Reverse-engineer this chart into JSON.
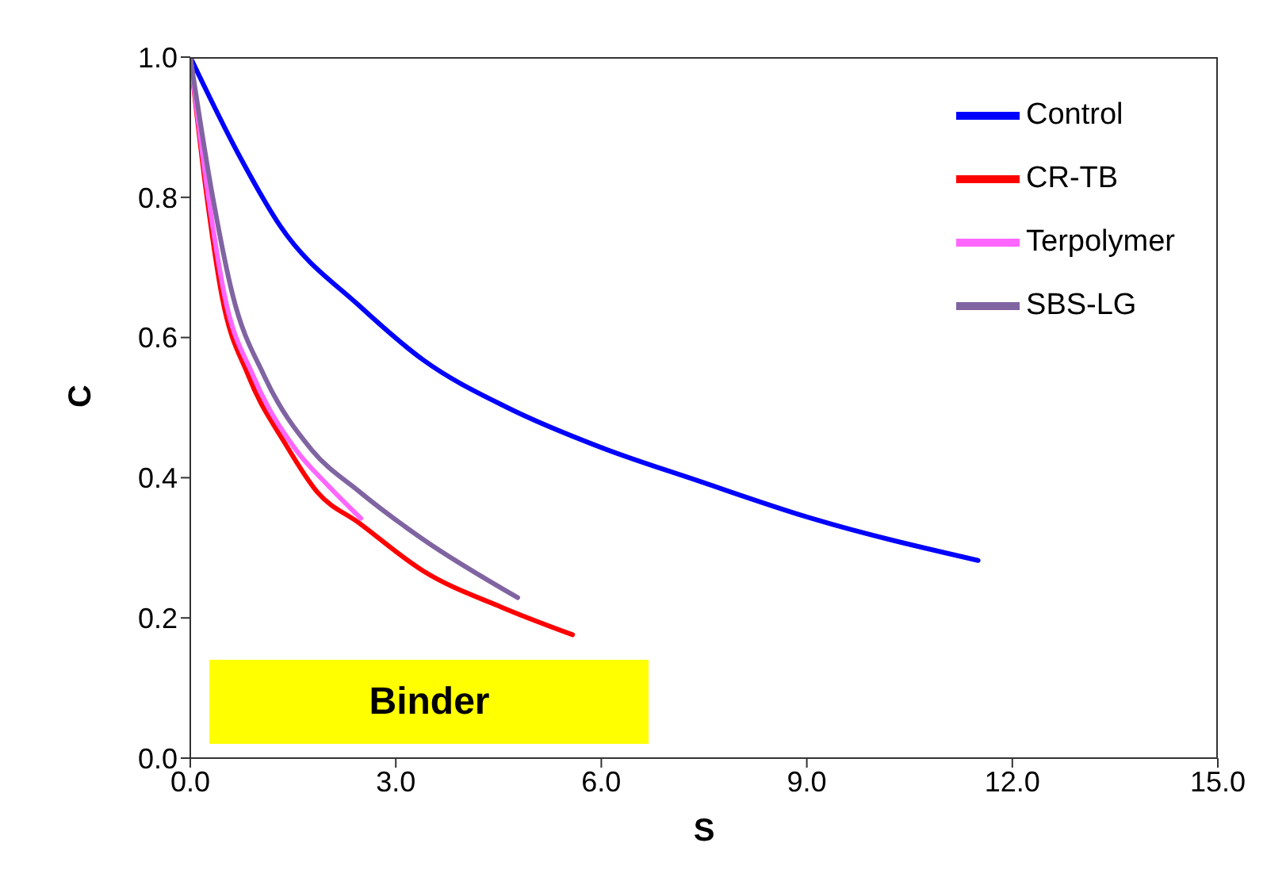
{
  "chart_data": {
    "type": "line",
    "xlabel": "S",
    "ylabel": "C",
    "annotations": [
      "Binder"
    ],
    "xlim": [
      0,
      15
    ],
    "xticks": [
      {
        "value": 0,
        "label": "0.0"
      },
      {
        "value": 3,
        "label": "3.0"
      },
      {
        "value": 6,
        "label": "6.0"
      },
      {
        "value": 9,
        "label": "9.0"
      },
      {
        "value": 12,
        "label": "12.0"
      },
      {
        "value": 15,
        "label": "15.0"
      }
    ],
    "ylim": [
      0,
      1
    ],
    "yticks": [
      {
        "value": 0,
        "label": "0.0"
      },
      {
        "value": 0.2,
        "label": "0.2"
      },
      {
        "value": 0.4,
        "label": "0.4"
      },
      {
        "value": 0.6,
        "label": "0.6"
      },
      {
        "value": 0.8,
        "label": "0.8"
      },
      {
        "value": 1,
        "label": "1.0"
      }
    ],
    "grid": false,
    "legend": "top right",
    "marker": "none",
    "line_style": "solid",
    "series": [
      {
        "name": "Control",
        "color": "#0000ff",
        "x": [
          0,
          0.69,
          1.32,
          2.47,
          3.4,
          4.63,
          6.0,
          7.4,
          9.07,
          11.5
        ],
        "values": [
          1.0,
          0.864,
          0.758,
          0.645,
          0.568,
          0.5,
          0.443,
          0.396,
          0.342,
          0.282
        ]
      },
      {
        "name": "CR-TB",
        "color": "#ff0000",
        "x": [
          0,
          0.23,
          0.46,
          0.85,
          1.39,
          1.85,
          2.47,
          3.4,
          4.55,
          5.58
        ],
        "values": [
          1.0,
          0.81,
          0.66,
          0.545,
          0.448,
          0.38,
          0.335,
          0.267,
          0.215,
          0.176
        ]
      },
      {
        "name": "Terpolymer",
        "color": "#ff66ff",
        "x": [
          0,
          0.25,
          0.5,
          0.92,
          1.54,
          2.0,
          2.49
        ],
        "values": [
          1.0,
          0.81,
          0.66,
          0.545,
          0.44,
          0.39,
          0.342
        ]
      },
      {
        "name": "SBS-LG",
        "color": "#8064a2",
        "x": [
          0,
          0.31,
          0.62,
          1.08,
          1.77,
          2.47,
          3.4,
          4.78
        ],
        "values": [
          1.0,
          0.81,
          0.66,
          0.545,
          0.44,
          0.38,
          0.312,
          0.229
        ]
      }
    ]
  }
}
